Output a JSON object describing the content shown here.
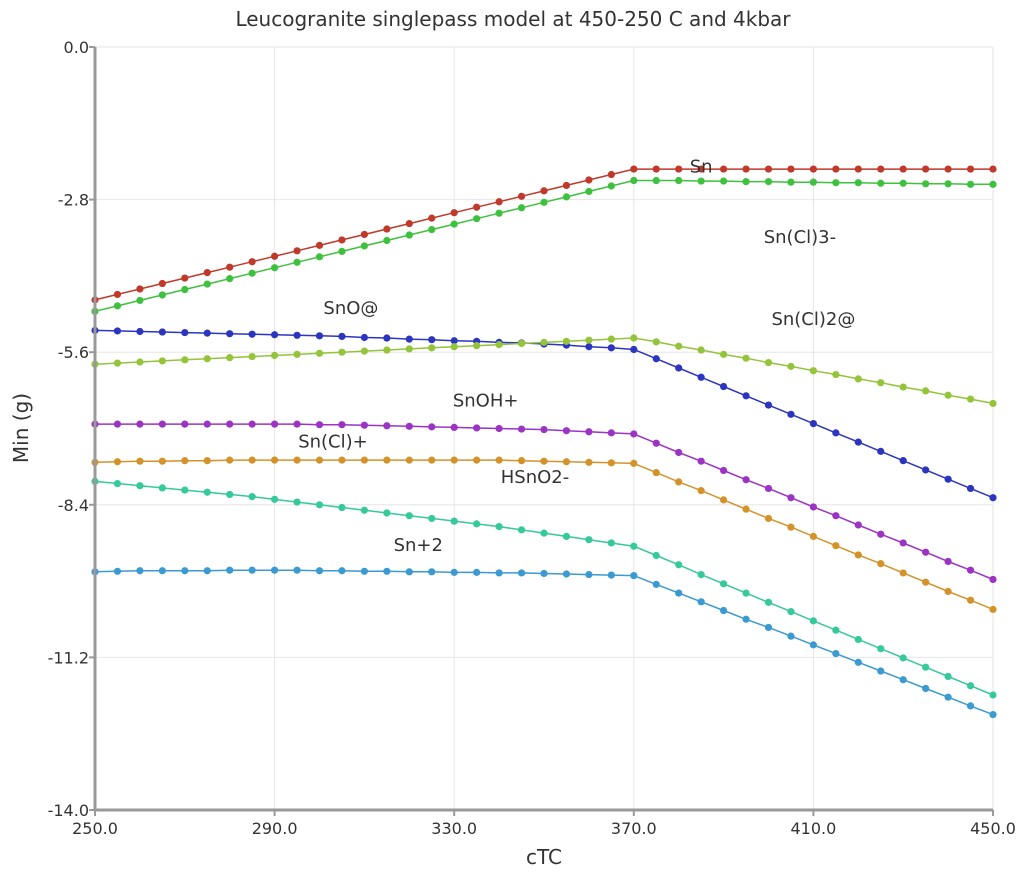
{
  "chart_data": {
    "type": "line",
    "title": "Leucogranite singlepass model at 450-250 C and 4kbar",
    "xlabel": "cTC",
    "ylabel": "Min (g)",
    "xlim": [
      250,
      450
    ],
    "ylim": [
      -14,
      0
    ],
    "xticks": [
      "250.0",
      "290.0",
      "330.0",
      "370.0",
      "410.0",
      "450.0"
    ],
    "yticks": [
      "0.0",
      "-2.8",
      "-5.6",
      "-8.4",
      "-11.2",
      "-14.0"
    ],
    "grid": true,
    "x": [
      250,
      255,
      260,
      265,
      270,
      275,
      280,
      285,
      290,
      295,
      300,
      305,
      310,
      315,
      320,
      325,
      330,
      335,
      340,
      345,
      350,
      355,
      360,
      365,
      370,
      375,
      380,
      385,
      390,
      395,
      400,
      405,
      410,
      415,
      420,
      425,
      430,
      435,
      440,
      445,
      450
    ],
    "series": [
      {
        "name": "Sn",
        "color": "#c0392b",
        "label_at": [
          385,
          -2.3
        ],
        "values": [
          -4.64,
          -4.54,
          -4.44,
          -4.34,
          -4.24,
          -4.14,
          -4.04,
          -3.94,
          -3.84,
          -3.74,
          -3.64,
          -3.54,
          -3.44,
          -3.34,
          -3.24,
          -3.14,
          -3.04,
          -2.94,
          -2.84,
          -2.74,
          -2.64,
          -2.54,
          -2.44,
          -2.34,
          -2.24,
          -2.24,
          -2.24,
          -2.24,
          -2.24,
          -2.24,
          -2.24,
          -2.24,
          -2.24,
          -2.24,
          -2.24,
          -2.24,
          -2.24,
          -2.24,
          -2.24,
          -2.24,
          -2.24
        ]
      },
      {
        "name": "Sn(Cl)3-",
        "color": "#3ec13e",
        "label_at": [
          407,
          -3.6
        ],
        "values": [
          -4.85,
          -4.75,
          -4.65,
          -4.55,
          -4.45,
          -4.35,
          -4.25,
          -4.15,
          -4.05,
          -3.95,
          -3.85,
          -3.75,
          -3.65,
          -3.55,
          -3.45,
          -3.35,
          -3.25,
          -3.15,
          -3.05,
          -2.95,
          -2.85,
          -2.75,
          -2.65,
          -2.55,
          -2.45,
          -2.45,
          -2.45,
          -2.46,
          -2.46,
          -2.47,
          -2.47,
          -2.48,
          -2.48,
          -2.49,
          -2.49,
          -2.5,
          -2.5,
          -2.51,
          -2.51,
          -2.52,
          -2.52
        ]
      },
      {
        "name": "SnO@",
        "color": "#2c35c0",
        "label_at": [
          307,
          -4.9
        ],
        "values": [
          -5.2,
          -5.21,
          -5.22,
          -5.23,
          -5.24,
          -5.25,
          -5.26,
          -5.27,
          -5.28,
          -5.29,
          -5.3,
          -5.31,
          -5.33,
          -5.34,
          -5.36,
          -5.37,
          -5.39,
          -5.4,
          -5.42,
          -5.43,
          -5.45,
          -5.47,
          -5.5,
          -5.52,
          -5.55,
          -5.72,
          -5.89,
          -6.06,
          -6.23,
          -6.4,
          -6.57,
          -6.74,
          -6.91,
          -7.08,
          -7.25,
          -7.42,
          -7.59,
          -7.76,
          -7.93,
          -8.1,
          -8.27
        ]
      },
      {
        "name": "Sn(Cl)2@",
        "color": "#93c43a",
        "label_at": [
          410,
          -5.1
        ],
        "values": [
          -5.82,
          -5.8,
          -5.78,
          -5.76,
          -5.74,
          -5.72,
          -5.7,
          -5.68,
          -5.66,
          -5.64,
          -5.62,
          -5.6,
          -5.58,
          -5.56,
          -5.54,
          -5.52,
          -5.5,
          -5.48,
          -5.46,
          -5.44,
          -5.42,
          -5.4,
          -5.38,
          -5.36,
          -5.34,
          -5.41,
          -5.49,
          -5.56,
          -5.64,
          -5.71,
          -5.79,
          -5.86,
          -5.94,
          -6.01,
          -6.09,
          -6.16,
          -6.24,
          -6.31,
          -6.39,
          -6.46,
          -6.54
        ]
      },
      {
        "name": "SnOH+",
        "color": "#9b34c4",
        "label_at": [
          337,
          -6.6
        ],
        "values": [
          -6.92,
          -6.92,
          -6.92,
          -6.92,
          -6.92,
          -6.92,
          -6.92,
          -6.92,
          -6.92,
          -6.92,
          -6.93,
          -6.93,
          -6.94,
          -6.95,
          -6.96,
          -6.97,
          -6.98,
          -6.99,
          -7.0,
          -7.01,
          -7.02,
          -7.04,
          -7.06,
          -7.08,
          -7.1,
          -7.27,
          -7.44,
          -7.6,
          -7.77,
          -7.94,
          -8.1,
          -8.27,
          -8.44,
          -8.6,
          -8.77,
          -8.94,
          -9.1,
          -9.27,
          -9.44,
          -9.6,
          -9.77
        ]
      },
      {
        "name": "Sn(Cl)+",
        "color": "#d4932a",
        "label_at": [
          303,
          -7.35
        ],
        "values": [
          -7.62,
          -7.61,
          -7.6,
          -7.6,
          -7.59,
          -7.59,
          -7.58,
          -7.58,
          -7.58,
          -7.58,
          -7.58,
          -7.58,
          -7.58,
          -7.58,
          -7.58,
          -7.58,
          -7.58,
          -7.58,
          -7.58,
          -7.59,
          -7.6,
          -7.61,
          -7.62,
          -7.63,
          -7.64,
          -7.81,
          -7.98,
          -8.14,
          -8.31,
          -8.48,
          -8.65,
          -8.81,
          -8.98,
          -9.15,
          -9.32,
          -9.48,
          -9.65,
          -9.82,
          -9.99,
          -10.15,
          -10.32
        ]
      },
      {
        "name": "HSnO2-",
        "color": "#35c99b",
        "label_at": [
          348,
          -8.0
        ],
        "values": [
          -7.97,
          -8.01,
          -8.05,
          -8.09,
          -8.13,
          -8.17,
          -8.21,
          -8.25,
          -8.3,
          -8.35,
          -8.4,
          -8.45,
          -8.5,
          -8.55,
          -8.6,
          -8.65,
          -8.7,
          -8.75,
          -8.8,
          -8.86,
          -8.92,
          -8.98,
          -9.04,
          -9.1,
          -9.16,
          -9.33,
          -9.5,
          -9.68,
          -9.85,
          -10.02,
          -10.19,
          -10.36,
          -10.53,
          -10.7,
          -10.87,
          -11.04,
          -11.21,
          -11.38,
          -11.55,
          -11.72,
          -11.89
        ]
      },
      {
        "name": "Sn+2",
        "color": "#3a9ad1",
        "label_at": [
          322,
          -9.25
        ],
        "values": [
          -9.63,
          -9.62,
          -9.61,
          -9.61,
          -9.61,
          -9.61,
          -9.6,
          -9.6,
          -9.6,
          -9.6,
          -9.61,
          -9.61,
          -9.62,
          -9.62,
          -9.63,
          -9.63,
          -9.64,
          -9.64,
          -9.65,
          -9.65,
          -9.66,
          -9.67,
          -9.68,
          -9.69,
          -9.7,
          -9.86,
          -10.02,
          -10.18,
          -10.34,
          -10.5,
          -10.65,
          -10.81,
          -10.97,
          -11.13,
          -11.29,
          -11.45,
          -11.61,
          -11.77,
          -11.93,
          -12.09,
          -12.25
        ]
      }
    ]
  }
}
